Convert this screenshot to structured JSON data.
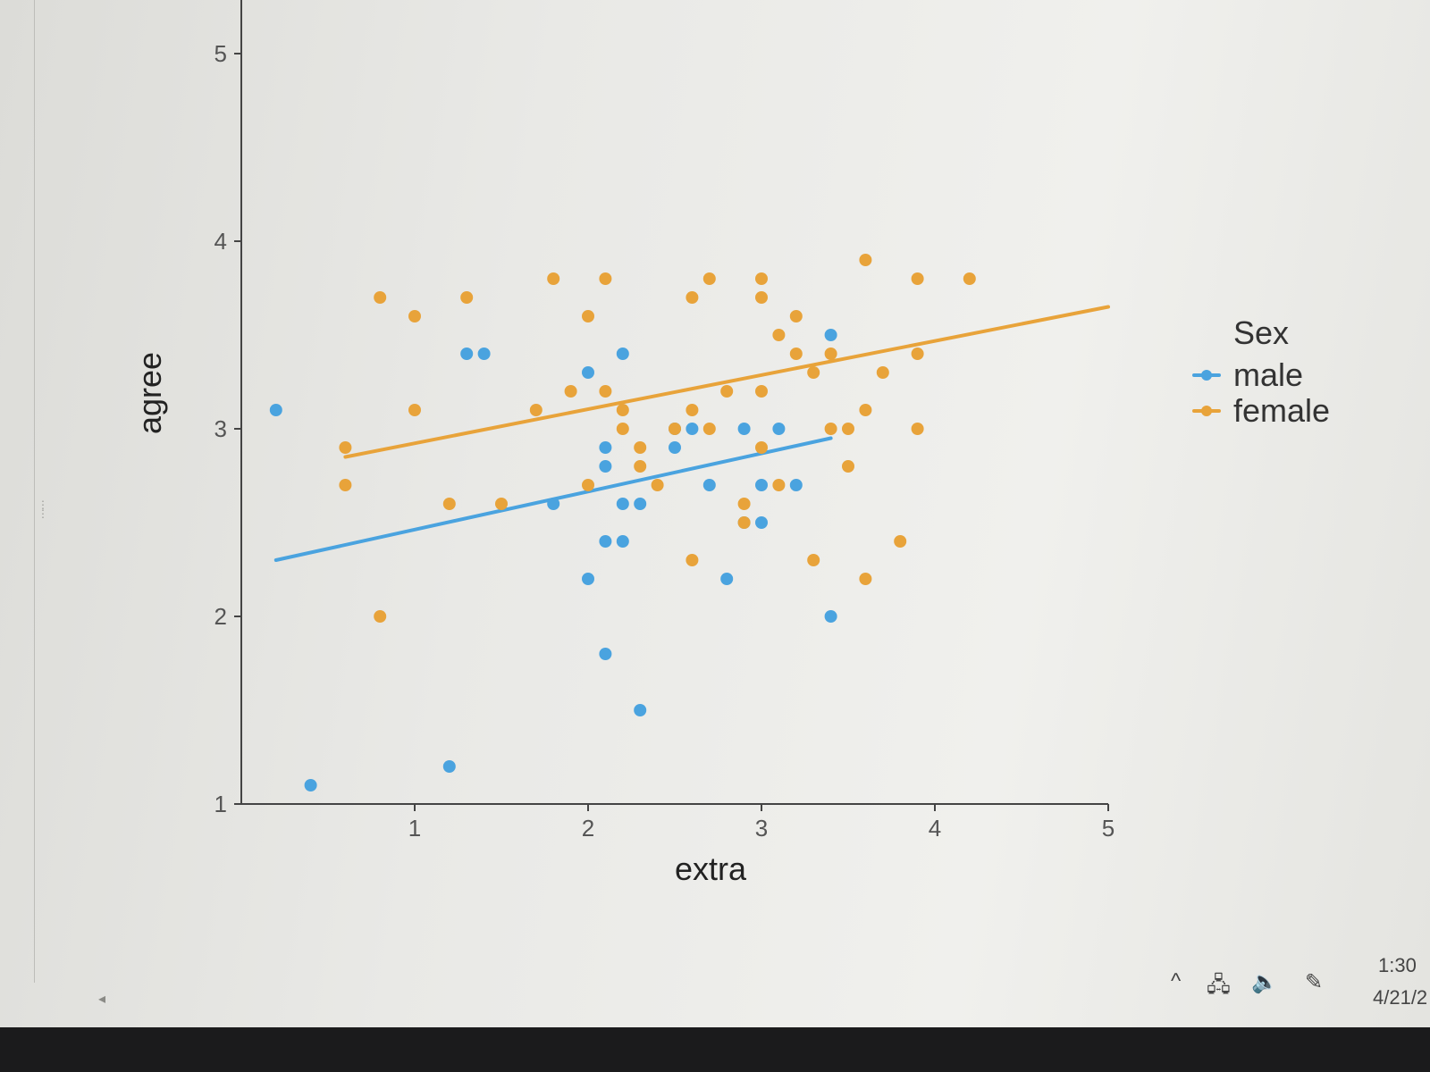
{
  "chart_data": {
    "type": "scatter",
    "title": "",
    "xlabel": "extra",
    "ylabel": "agree",
    "xlim": [
      0.0,
      5.0
    ],
    "ylim": [
      1.0,
      5.0
    ],
    "xticks": [
      1,
      2,
      3,
      4,
      5
    ],
    "yticks": [
      1,
      2,
      3,
      4,
      5
    ],
    "legend": {
      "title": "Sex",
      "position": "right"
    },
    "series": [
      {
        "name": "male",
        "color": "#4aa3df",
        "points": [
          [
            0.2,
            3.1
          ],
          [
            0.4,
            1.1
          ],
          [
            1.2,
            1.2
          ],
          [
            1.3,
            3.4
          ],
          [
            1.4,
            3.4
          ],
          [
            1.8,
            2.6
          ],
          [
            2.0,
            2.2
          ],
          [
            2.0,
            3.3
          ],
          [
            2.1,
            1.8
          ],
          [
            2.1,
            2.8
          ],
          [
            2.1,
            2.9
          ],
          [
            2.1,
            2.4
          ],
          [
            2.2,
            2.6
          ],
          [
            2.2,
            3.4
          ],
          [
            2.2,
            2.4
          ],
          [
            2.3,
            1.5
          ],
          [
            2.3,
            2.6
          ],
          [
            2.5,
            3.0
          ],
          [
            2.5,
            2.9
          ],
          [
            2.6,
            3.0
          ],
          [
            2.7,
            2.7
          ],
          [
            2.8,
            2.2
          ],
          [
            2.9,
            2.5
          ],
          [
            2.9,
            3.0
          ],
          [
            3.0,
            2.5
          ],
          [
            3.0,
            2.7
          ],
          [
            3.1,
            3.0
          ],
          [
            3.2,
            2.7
          ],
          [
            3.4,
            2.0
          ],
          [
            3.4,
            3.5
          ]
        ],
        "fit": [
          [
            0.2,
            2.3
          ],
          [
            3.4,
            2.95
          ]
        ]
      },
      {
        "name": "female",
        "color": "#e8a33a",
        "points": [
          [
            0.6,
            2.7
          ],
          [
            0.6,
            2.9
          ],
          [
            0.8,
            2.0
          ],
          [
            0.8,
            3.7
          ],
          [
            1.0,
            3.6
          ],
          [
            1.0,
            3.1
          ],
          [
            1.2,
            2.6
          ],
          [
            1.3,
            3.7
          ],
          [
            1.5,
            2.6
          ],
          [
            1.7,
            3.1
          ],
          [
            1.8,
            3.8
          ],
          [
            1.9,
            3.2
          ],
          [
            2.0,
            2.7
          ],
          [
            2.0,
            3.6
          ],
          [
            2.1,
            3.8
          ],
          [
            2.1,
            3.2
          ],
          [
            2.2,
            3.0
          ],
          [
            2.2,
            3.1
          ],
          [
            2.3,
            2.8
          ],
          [
            2.3,
            2.9
          ],
          [
            2.4,
            2.7
          ],
          [
            2.5,
            3.0
          ],
          [
            2.6,
            2.3
          ],
          [
            2.6,
            3.1
          ],
          [
            2.6,
            3.7
          ],
          [
            2.7,
            3.0
          ],
          [
            2.7,
            3.8
          ],
          [
            2.8,
            3.2
          ],
          [
            2.9,
            2.6
          ],
          [
            2.9,
            2.5
          ],
          [
            3.0,
            2.9
          ],
          [
            3.0,
            3.2
          ],
          [
            3.0,
            3.7
          ],
          [
            3.0,
            3.8
          ],
          [
            3.1,
            2.7
          ],
          [
            3.1,
            3.5
          ],
          [
            3.2,
            3.6
          ],
          [
            3.2,
            3.4
          ],
          [
            3.3,
            3.3
          ],
          [
            3.3,
            2.3
          ],
          [
            3.4,
            3.0
          ],
          [
            3.4,
            3.4
          ],
          [
            3.5,
            2.8
          ],
          [
            3.5,
            3.0
          ],
          [
            3.6,
            2.2
          ],
          [
            3.6,
            3.1
          ],
          [
            3.6,
            3.9
          ],
          [
            3.7,
            3.3
          ],
          [
            3.8,
            2.4
          ],
          [
            3.9,
            3.0
          ],
          [
            3.9,
            3.4
          ],
          [
            3.9,
            3.8
          ],
          [
            4.2,
            3.8
          ]
        ],
        "fit": [
          [
            0.6,
            2.85
          ],
          [
            5.0,
            3.65
          ]
        ]
      }
    ]
  },
  "taskbar": {
    "chevron_icon": "^",
    "network_icon": "🖧",
    "volume_icon": "🔈",
    "pen_icon": "✎",
    "time": "1:30",
    "date": "4/21/2"
  }
}
